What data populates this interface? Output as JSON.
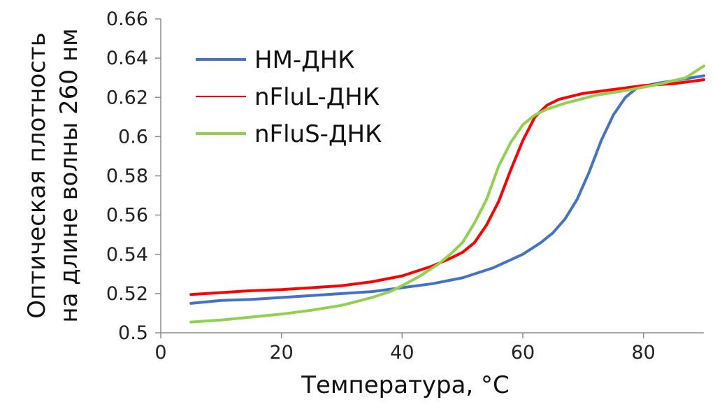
{
  "chart_data": {
    "type": "line",
    "title": "",
    "xlabel": "Температура, °C",
    "ylabel": [
      "Оптическая плотность",
      "на длине волны 260 нм"
    ],
    "xlim": [
      0,
      90
    ],
    "ylim": [
      0.5,
      0.66
    ],
    "x_ticks": [
      "0",
      "20",
      "40",
      "60",
      "80"
    ],
    "y_ticks": [
      "0.5",
      "0.52",
      "0.54",
      "0.56",
      "0.58",
      "0.6",
      "0.62",
      "0.64",
      "0.66"
    ],
    "grid": false,
    "legend_position": "top-left",
    "series": [
      {
        "name": "НМ-ДНК",
        "color": "#4472C4",
        "points": [
          [
            5,
            0.515
          ],
          [
            10,
            0.5165
          ],
          [
            15,
            0.517
          ],
          [
            20,
            0.518
          ],
          [
            25,
            0.519
          ],
          [
            30,
            0.52
          ],
          [
            35,
            0.521
          ],
          [
            40,
            0.523
          ],
          [
            45,
            0.525
          ],
          [
            50,
            0.528
          ],
          [
            55,
            0.533
          ],
          [
            60,
            0.54
          ],
          [
            63,
            0.546
          ],
          [
            65,
            0.551
          ],
          [
            67,
            0.558
          ],
          [
            69,
            0.568
          ],
          [
            71,
            0.582
          ],
          [
            73,
            0.598
          ],
          [
            75,
            0.611
          ],
          [
            77,
            0.62
          ],
          [
            79,
            0.625
          ],
          [
            82,
            0.627
          ],
          [
            86,
            0.629
          ],
          [
            90,
            0.631
          ]
        ]
      },
      {
        "name": "nFluL-ДНК",
        "color": "#FF0000",
        "points": [
          [
            5,
            0.5195
          ],
          [
            10,
            0.5205
          ],
          [
            15,
            0.5215
          ],
          [
            20,
            0.522
          ],
          [
            25,
            0.523
          ],
          [
            30,
            0.524
          ],
          [
            35,
            0.526
          ],
          [
            40,
            0.529
          ],
          [
            45,
            0.534
          ],
          [
            48,
            0.538
          ],
          [
            50,
            0.541
          ],
          [
            52,
            0.546
          ],
          [
            54,
            0.555
          ],
          [
            56,
            0.567
          ],
          [
            58,
            0.583
          ],
          [
            60,
            0.598
          ],
          [
            62,
            0.61
          ],
          [
            64,
            0.616
          ],
          [
            66,
            0.619
          ],
          [
            70,
            0.622
          ],
          [
            75,
            0.624
          ],
          [
            80,
            0.626
          ],
          [
            85,
            0.627
          ],
          [
            90,
            0.629
          ]
        ]
      },
      {
        "name": "nFluS-ДНК",
        "color": "#92D050",
        "points": [
          [
            5,
            0.5055
          ],
          [
            10,
            0.5065
          ],
          [
            15,
            0.508
          ],
          [
            20,
            0.5095
          ],
          [
            25,
            0.5115
          ],
          [
            30,
            0.514
          ],
          [
            35,
            0.518
          ],
          [
            38,
            0.521
          ],
          [
            40,
            0.524
          ],
          [
            43,
            0.529
          ],
          [
            46,
            0.535
          ],
          [
            48,
            0.54
          ],
          [
            50,
            0.546
          ],
          [
            52,
            0.556
          ],
          [
            54,
            0.568
          ],
          [
            56,
            0.585
          ],
          [
            58,
            0.597
          ],
          [
            60,
            0.606
          ],
          [
            62,
            0.611
          ],
          [
            64,
            0.614
          ],
          [
            67,
            0.617
          ],
          [
            72,
            0.621
          ],
          [
            78,
            0.624
          ],
          [
            83,
            0.627
          ],
          [
            87,
            0.63
          ],
          [
            90,
            0.636
          ]
        ]
      }
    ]
  }
}
